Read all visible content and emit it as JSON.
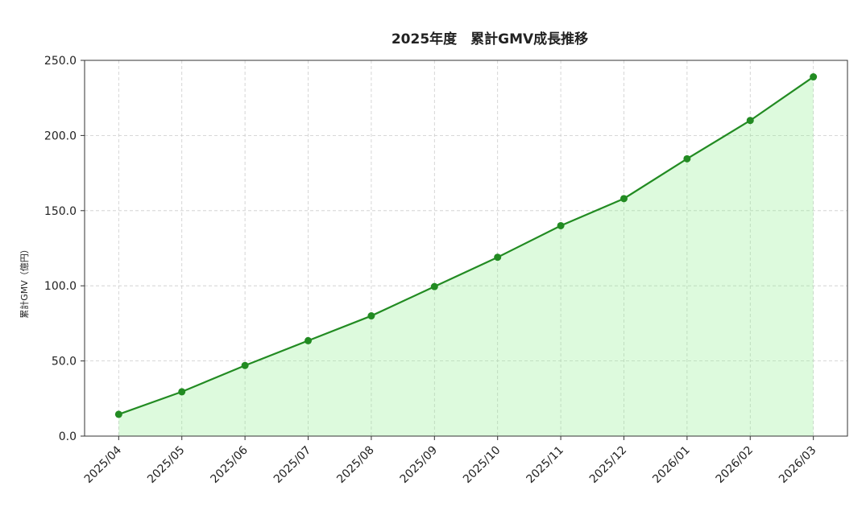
{
  "chart_data": {
    "type": "line",
    "title": "2025年度　累計GMV成長推移",
    "y_label": "累計GMV（億円）",
    "categories": [
      "2025/04",
      "2025/05",
      "2025/06",
      "2025/07",
      "2025/08",
      "2025/09",
      "2025/10",
      "2025/11",
      "2025/12",
      "2026/01",
      "2026/02",
      "2026/03"
    ],
    "series": [
      {
        "name": "累計GMV",
        "color": "#228b22",
        "fill": "#90ee90",
        "values": [
          14.5,
          29.5,
          47,
          63.5,
          80,
          99.5,
          119,
          140,
          158,
          184.5,
          210,
          239
        ]
      }
    ],
    "ylim": [
      0,
      250
    ],
    "yticks": [
      {
        "value": 0,
        "label": "0.0"
      },
      {
        "value": 50,
        "label": "50.0"
      },
      {
        "value": 100,
        "label": "100.0"
      },
      {
        "value": 150,
        "label": "150.0"
      },
      {
        "value": 200,
        "label": "200.0"
      },
      {
        "value": 250,
        "label": "250.0"
      }
    ],
    "grid": true
  }
}
